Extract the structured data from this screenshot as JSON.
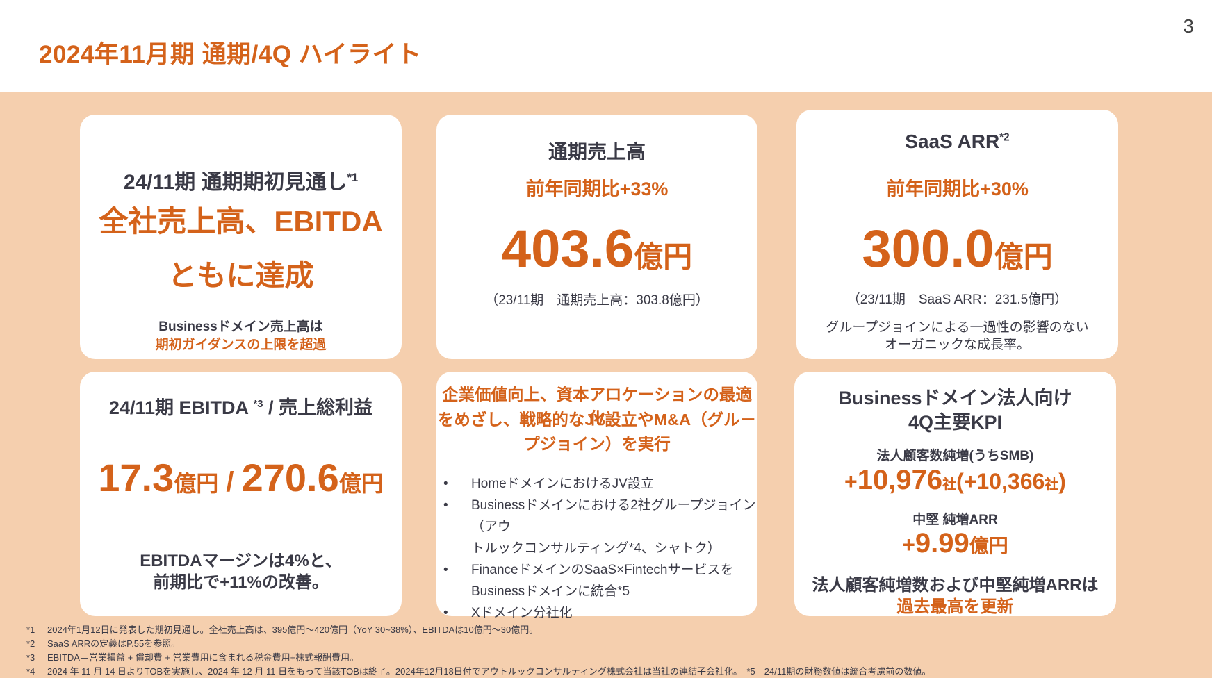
{
  "header": {
    "title": "2024年11月期 通期/4Q ハイライト",
    "page_number": "3"
  },
  "cards": {
    "guidance": {
      "heading": "24/11期 通期期初見通し",
      "heading_mark": "*1",
      "headline_line1": "全社売上高、EBITDA",
      "headline_line2": "ともに達成",
      "note_line1": "Businessドメイン売上高は",
      "note_line2": "期初ガイダンスの上限を超過"
    },
    "revenue": {
      "title": "通期売上高",
      "growth": "前年同期比+33%",
      "value": "403.6",
      "unit": "億円",
      "prior": "（23/11期　通期売上高：303.8億円）"
    },
    "saas_arr": {
      "title": "SaaS ARR",
      "title_mark": "*2",
      "growth": "前年同期比+30%",
      "value": "300.0",
      "unit": "億円",
      "prior": "（23/11期　SaaS ARR：231.5億円）",
      "note_line1": "グループジョインによる一過性の影響のない",
      "note_line2": "オーガニックな成長率。"
    },
    "ebitda": {
      "title_pre": "24/11期 EBITDA ",
      "title_mark": "*3",
      "title_post": " / 売上総利益",
      "value1": "17.3",
      "unit1": "億円",
      "separator": "/ ",
      "value2": "270.6",
      "unit2": "億円",
      "note_line1": "EBITDAマージンは4%と、",
      "note_line2": "前期比で+11%の改善。"
    },
    "strategy": {
      "heading_line1": "企業価値向上、資本アロケーションの最適化",
      "heading_line2": "をめざし、戦略的なJV設立やM&A（グル－",
      "heading_line3": "プジョイン）を実行",
      "bullet_symbol": "•",
      "bullets": [
        {
          "line1": "HomeドメインにおけるJV設立",
          "line2": ""
        },
        {
          "line1": "Businessドメインにおける2社グループジョイン（アウ",
          "line2": "トルックコンサルティング*4、シャトク）"
        },
        {
          "line1": "FinanceドメインのSaaS×Fintechサービスを",
          "line2": "Businessドメインに統合*5"
        },
        {
          "line1": "Xドメイン分社化",
          "line2": ""
        }
      ]
    },
    "kpi": {
      "title_line1": "Businessドメイン法人向け",
      "title_line2": "4Q主要KPI",
      "label1": "法人顧客数純増(うちSMB)",
      "value1_prefix": "+",
      "value1": "10,976",
      "value1_unit": "社",
      "value1_sub_open": "(+",
      "value1_sub": "10,366",
      "value1_sub_unit": "社",
      "value1_sub_close": ")",
      "label2": "中堅 純増ARR",
      "value2_prefix": "+",
      "value2": "9.99",
      "value2_unit": "億円",
      "note_line1": "法人顧客純増数および中堅純増ARRは",
      "note_line2": "過去最高を更新"
    }
  },
  "footnotes": [
    {
      "mark": "*1",
      "text": "2024年1月12日に発表した期初見通し。全社売上高は、395億円～420億円（YoY 30~38%）、EBITDAは10億円～30億円。"
    },
    {
      "mark": "*2",
      "text": "SaaS ARRの定義はP.55を参照。"
    },
    {
      "mark": "*3",
      "text": "EBITDA＝営業損益 + 償却費 + 営業費用に含まれる税金費用+株式報酬費用。"
    },
    {
      "mark": "*4",
      "text": "2024 年 11 月 14 日よりTOBを実施し、2024 年 12 月 11 日をもって当該TOBは終了。2024年12月18日付でアウトルックコンサルティング株式会社は当社の連結子会社化。　*5　24/11期の財務数値は統合考慮前の数値。"
    }
  ],
  "colors": {
    "accent_orange": "#d4621a",
    "band_background": "#f5cfae",
    "text_dark": "#3a3a46",
    "card_background": "#ffffff"
  }
}
